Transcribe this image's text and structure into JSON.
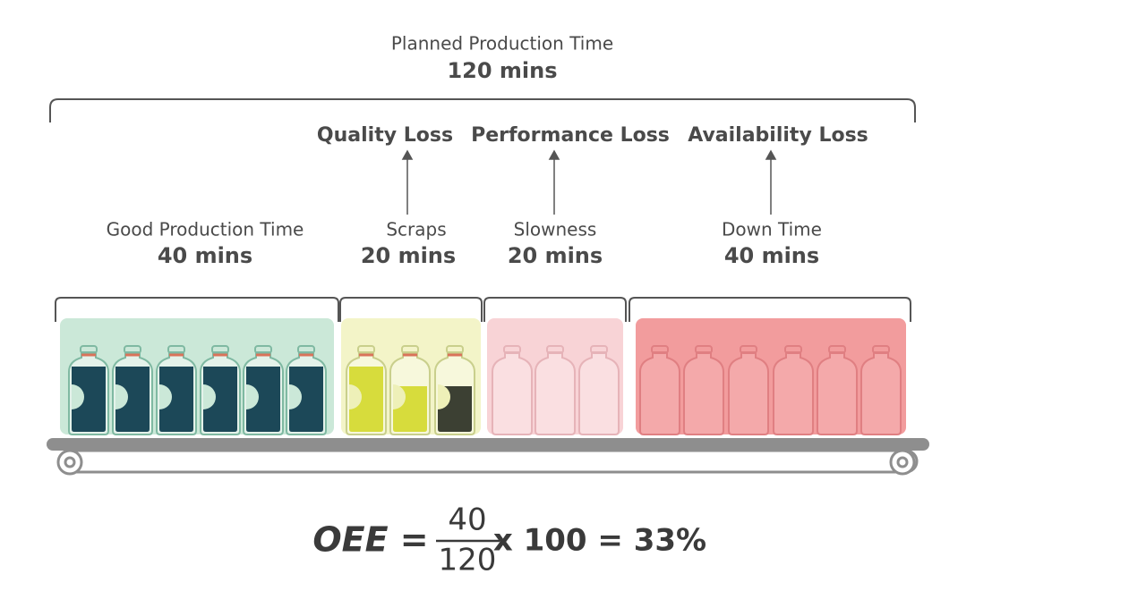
{
  "header": {
    "title": "Planned Production Time",
    "total": "120 mins"
  },
  "losses": [
    {
      "label": "Quality Loss"
    },
    {
      "label": "Performance Loss"
    },
    {
      "label": "Availability Loss"
    }
  ],
  "segments": [
    {
      "label": "Good Production Time",
      "time": "40 mins"
    },
    {
      "label": "Scraps",
      "time": "20 mins"
    },
    {
      "label": "Slowness",
      "time": "20 mins"
    },
    {
      "label": "Down Time",
      "time": "40 mins"
    }
  ],
  "formula": {
    "lhs": "OEE =",
    "numerator": "40",
    "denominator": "120",
    "rhs": "x 100 = 33%"
  }
}
